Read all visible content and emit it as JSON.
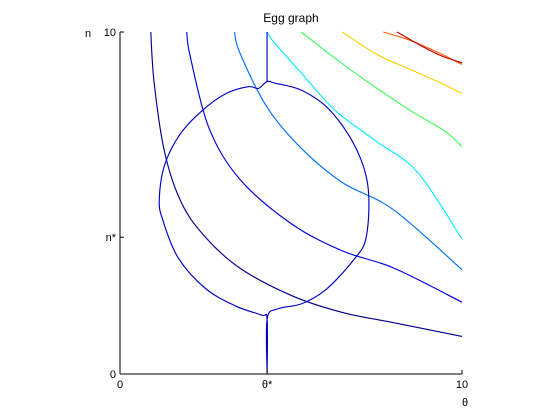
{
  "chart_data": {
    "type": "line",
    "title": "Egg graph",
    "xlabel": "θ",
    "ylabel": "n",
    "xlim": [
      0,
      10
    ],
    "ylim": [
      0,
      10
    ],
    "grid": false,
    "axis_color": "#000000",
    "x_ticks": [
      {
        "value": 0,
        "label": "0"
      },
      {
        "value": 4.3,
        "label": "θ*"
      },
      {
        "value": 10,
        "label": "10"
      }
    ],
    "y_ticks": [
      {
        "value": 0,
        "label": "0"
      },
      {
        "value": 4,
        "label": "n*"
      },
      {
        "value": 10,
        "label": "10"
      }
    ],
    "egg": {
      "color": "#0000c8",
      "points": [
        [
          4.3,
          0
        ],
        [
          4.3,
          1.6
        ],
        [
          4.15,
          1.72
        ],
        [
          3.4,
          1.98
        ],
        [
          2.5,
          2.5
        ],
        [
          1.7,
          3.4
        ],
        [
          1.25,
          4.5
        ],
        [
          1.15,
          5.1
        ],
        [
          1.3,
          6.1
        ],
        [
          1.75,
          7.0
        ],
        [
          2.4,
          7.7
        ],
        [
          3.1,
          8.2
        ],
        [
          3.75,
          8.4
        ],
        [
          4.05,
          8.35
        ],
        [
          4.3,
          8.55
        ],
        [
          4.55,
          8.5
        ],
        [
          5.3,
          8.3
        ],
        [
          6.1,
          7.75
        ],
        [
          6.85,
          6.7
        ],
        [
          7.25,
          5.5
        ],
        [
          7.2,
          4.0
        ],
        [
          6.8,
          3.3
        ],
        [
          6.0,
          2.45
        ],
        [
          5.3,
          2.05
        ],
        [
          4.6,
          1.9
        ],
        [
          4.3,
          1.6
        ],
        [
          4.3,
          0
        ]
      ],
      "stem": [
        [
          4.3,
          8.55
        ],
        [
          4.3,
          10
        ]
      ]
    },
    "series": [
      {
        "color": "#00008f",
        "points": [
          [
            0.9,
            10
          ],
          [
            1.0,
            8.5
          ],
          [
            1.3,
            6.5
          ],
          [
            1.8,
            5.0
          ],
          [
            2.5,
            4.0
          ],
          [
            3.5,
            3.1
          ],
          [
            5.0,
            2.3
          ],
          [
            6.5,
            1.8
          ],
          [
            8.0,
            1.5
          ],
          [
            10,
            1.1
          ]
        ]
      },
      {
        "color": "#0000d8",
        "points": [
          [
            1.95,
            10
          ],
          [
            2.05,
            9.3
          ],
          [
            2.6,
            7.2
          ],
          [
            3.5,
            5.7
          ],
          [
            5.0,
            4.4
          ],
          [
            6.5,
            3.6
          ],
          [
            8.0,
            3.1
          ],
          [
            10,
            2.1
          ]
        ]
      },
      {
        "color": "#0070ff",
        "points": [
          [
            3.35,
            10
          ],
          [
            3.5,
            9.4
          ],
          [
            4.3,
            7.8
          ],
          [
            5.3,
            6.6
          ],
          [
            6.5,
            5.6
          ],
          [
            8.0,
            4.8
          ],
          [
            10,
            3.05
          ]
        ]
      },
      {
        "color": "#00f0ff",
        "points": [
          [
            4.3,
            10
          ],
          [
            4.5,
            9.7
          ],
          [
            5.3,
            8.8
          ],
          [
            6.3,
            7.7
          ],
          [
            7.5,
            6.8
          ],
          [
            8.7,
            5.9
          ],
          [
            10,
            3.95
          ]
        ]
      },
      {
        "color": "#3cff5a",
        "points": [
          [
            5.3,
            10
          ],
          [
            6.2,
            9.3
          ],
          [
            7.3,
            8.5
          ],
          [
            8.5,
            7.7
          ],
          [
            9.5,
            7.1
          ],
          [
            10,
            6.65
          ]
        ]
      },
      {
        "color": "#ffd200",
        "points": [
          [
            6.5,
            10
          ],
          [
            7.5,
            9.35
          ],
          [
            8.5,
            8.9
          ],
          [
            9.4,
            8.5
          ],
          [
            10,
            8.2
          ]
        ]
      },
      {
        "color": "#ff5a00",
        "points": [
          [
            7.7,
            10
          ],
          [
            8.5,
            9.75
          ],
          [
            9.3,
            9.4
          ],
          [
            10,
            9.05
          ]
        ]
      },
      {
        "color": "#c80000",
        "points": [
          [
            8.1,
            10
          ],
          [
            8.8,
            9.6
          ],
          [
            9.4,
            9.3
          ],
          [
            10,
            9.1
          ]
        ]
      }
    ]
  }
}
